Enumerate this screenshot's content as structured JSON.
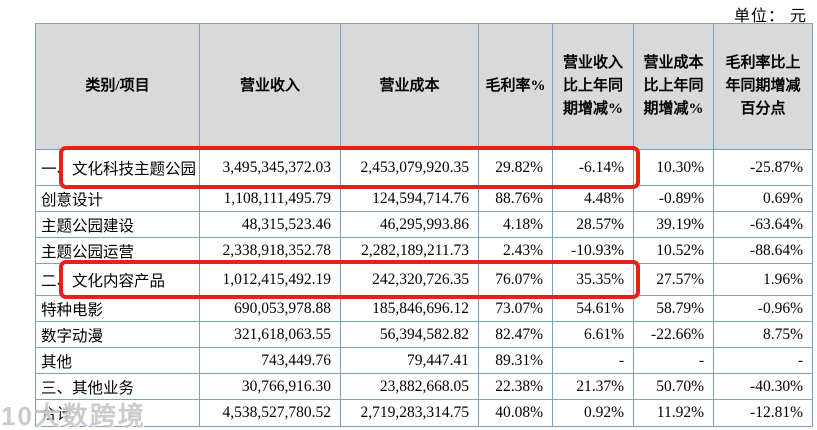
{
  "unit_label": "单位： 元",
  "watermark_text": "10大数跨境",
  "colors": {
    "table_border": "#76a1c8",
    "header_background": "#d9d9d9",
    "highlight_red": "#e2231a",
    "text": "#000000"
  },
  "table": {
    "headers": [
      "类别/项目",
      "营业收入",
      "营业成本",
      "毛利率%",
      "营业收入比上年同期增减%",
      "营业成本比上年同期增减%",
      "毛利率比上年同期增减百分点"
    ],
    "rows": [
      {
        "highlighted": true,
        "cells": [
          "一、文化科技主题公园",
          "3,495,345,372.03",
          "2,453,079,920.35",
          "29.82%",
          "-6.14%",
          "10.30%",
          "-25.87%"
        ]
      },
      {
        "highlighted": false,
        "cells": [
          "创意设计",
          "1,108,111,495.79",
          "124,594,714.76",
          "88.76%",
          "4.48%",
          "-0.89%",
          "0.69%"
        ]
      },
      {
        "highlighted": false,
        "cells": [
          "主题公园建设",
          "48,315,523.46",
          "46,295,993.86",
          "4.18%",
          "28.57%",
          "39.19%",
          "-63.64%"
        ]
      },
      {
        "highlighted": false,
        "cells": [
          "主题公园运营",
          "2,338,918,352.78",
          "2,282,189,211.73",
          "2.43%",
          "-10.93%",
          "10.52%",
          "-88.64%"
        ]
      },
      {
        "highlighted": true,
        "cells": [
          "二、文化内容产品",
          "1,012,415,492.19",
          "242,320,726.35",
          "76.07%",
          "35.35%",
          "27.57%",
          "1.96%"
        ]
      },
      {
        "highlighted": false,
        "cells": [
          "特种电影",
          "690,053,978.88",
          "185,846,696.12",
          "73.07%",
          "54.61%",
          "58.79%",
          "-0.96%"
        ]
      },
      {
        "highlighted": false,
        "cells": [
          "数字动漫",
          "321,618,063.55",
          "56,394,582.82",
          "82.47%",
          "6.61%",
          "-22.66%",
          "8.75%"
        ]
      },
      {
        "highlighted": false,
        "cells": [
          "其他",
          "743,449.76",
          "79,447.41",
          "89.31%",
          "-",
          "-",
          "-"
        ]
      },
      {
        "highlighted": false,
        "cells": [
          "三、其他业务",
          "30,766,916.30",
          "23,882,668.05",
          "22.38%",
          "21.37%",
          "50.70%",
          "-40.30%"
        ]
      },
      {
        "highlighted": false,
        "cells": [
          "合计",
          "4,538,527,780.52",
          "2,719,283,314.75",
          "40.08%",
          "0.92%",
          "11.92%",
          "-12.81%"
        ]
      }
    ]
  }
}
